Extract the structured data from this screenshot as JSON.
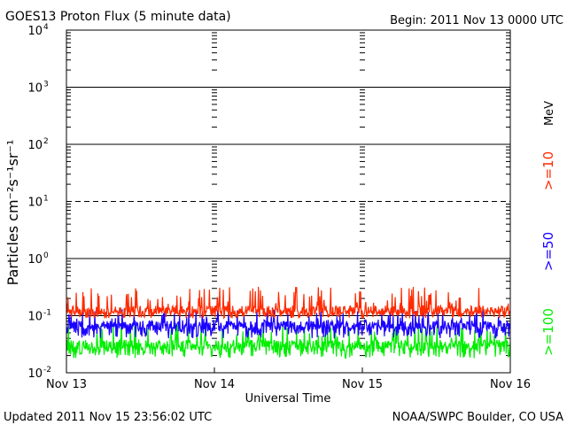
{
  "chart_data": {
    "type": "line",
    "title": "GOES13 Proton Flux (5 minute data)",
    "begin_label": "Begin: 2011 Nov 13 0000 UTC",
    "xlabel": "Universal Time",
    "ylabel": "Particles cm⁻²s⁻¹sr⁻¹",
    "y_scale": "log",
    "ylim": [
      0.01,
      10000
    ],
    "y_ticks": [
      {
        "value": 10000,
        "base": "10",
        "exp": "4"
      },
      {
        "value": 1000,
        "base": "10",
        "exp": "3"
      },
      {
        "value": 100,
        "base": "10",
        "exp": "2"
      },
      {
        "value": 10,
        "base": "10",
        "exp": "1"
      },
      {
        "value": 1,
        "base": "10",
        "exp": "0"
      },
      {
        "value": 0.1,
        "base": "10",
        "exp": "-1"
      },
      {
        "value": 0.01,
        "base": "10",
        "exp": "-2"
      }
    ],
    "x_ticks": [
      "Nov 13",
      "Nov 14",
      "Nov 15",
      "Nov 16"
    ],
    "xlim_days": [
      0,
      3
    ],
    "solid_grid_values": [
      1000,
      100,
      1,
      0.1
    ],
    "dashed_grid_values": [
      10
    ],
    "energy_unit": "MeV",
    "series": [
      {
        "name": ">=10",
        "color": "#ff2a00",
        "baseline": 0.12,
        "low": 0.09,
        "high": 0.32
      },
      {
        "name": ">=50",
        "color": "#1a00ff",
        "baseline": 0.065,
        "low": 0.04,
        "high": 0.13
      },
      {
        "name": ">=100",
        "color": "#00ee00",
        "baseline": 0.03,
        "low": 0.018,
        "high": 0.075
      }
    ]
  },
  "footer": {
    "updated": "Updated 2011 Nov 15 23:56:02 UTC",
    "credit": "NOAA/SWPC Boulder, CO USA"
  }
}
